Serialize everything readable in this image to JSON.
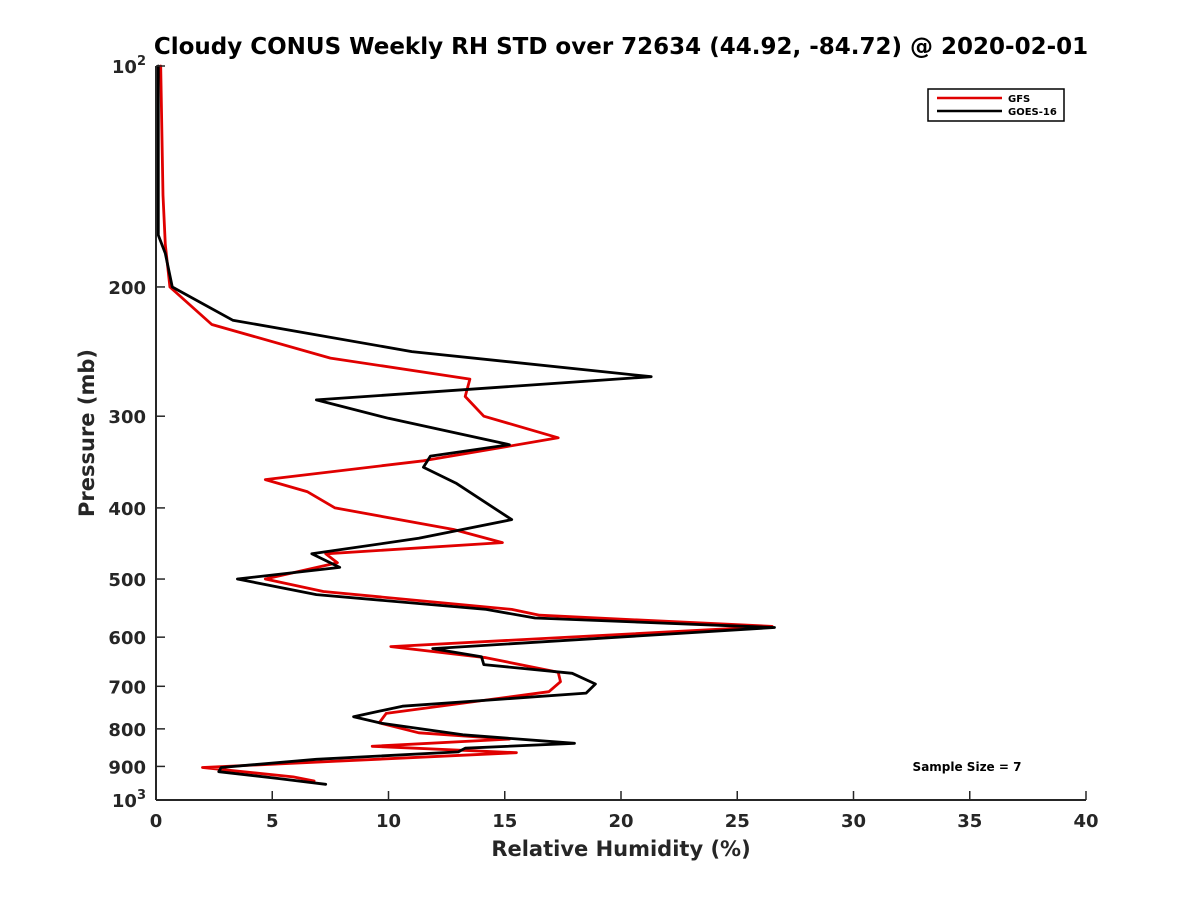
{
  "chart_data": {
    "type": "line",
    "title": "Cloudy CONUS Weekly RH STD over 72634 (44.92, -84.72) @ 2020-02-01",
    "xlabel": "Relative Humidity (%)",
    "ylabel": "Pressure (mb)",
    "xlim": [
      0,
      40
    ],
    "ylim": [
      100,
      1000
    ],
    "y_scale": "log",
    "y_reversed": true,
    "x_ticks": [
      "0",
      "5",
      "10",
      "15",
      "20",
      "25",
      "30",
      "35",
      "40"
    ],
    "y_ticks": [
      {
        "value": 100,
        "base": "10",
        "exp": "2"
      },
      {
        "value": 200,
        "label": "200"
      },
      {
        "value": 300,
        "label": "300"
      },
      {
        "value": 400,
        "label": "400"
      },
      {
        "value": 500,
        "label": "500"
      },
      {
        "value": 600,
        "label": "600"
      },
      {
        "value": 700,
        "label": "700"
      },
      {
        "value": 800,
        "label": "800"
      },
      {
        "value": 900,
        "label": "900"
      },
      {
        "value": 1000,
        "base": "10",
        "exp": "3"
      }
    ],
    "legend_position": "top-right",
    "annotation": "Sample Size = 7",
    "series": [
      {
        "name": "GFS",
        "color": "#e00000",
        "points": [
          [
            0.2,
            100
          ],
          [
            0.3,
            150
          ],
          [
            0.4,
            175
          ],
          [
            0.6,
            200
          ],
          [
            2.4,
            225
          ],
          [
            7.5,
            250
          ],
          [
            13.5,
            267
          ],
          [
            13.3,
            282
          ],
          [
            14.1,
            300
          ],
          [
            17.3,
            321
          ],
          [
            11.5,
            345
          ],
          [
            4.7,
            366
          ],
          [
            6.5,
            380
          ],
          [
            7.7,
            400
          ],
          [
            12.8,
            428
          ],
          [
            14.9,
            446
          ],
          [
            7.3,
            462
          ],
          [
            7.8,
            475
          ],
          [
            4.7,
            500
          ],
          [
            7.2,
            520
          ],
          [
            15.3,
            550
          ],
          [
            16.5,
            560
          ],
          [
            26.5,
            580
          ],
          [
            10.1,
            618
          ],
          [
            14.2,
            640
          ],
          [
            17.3,
            670
          ],
          [
            17.4,
            690
          ],
          [
            16.9,
            712
          ],
          [
            9.9,
            762
          ],
          [
            9.6,
            785
          ],
          [
            11.3,
            810
          ],
          [
            15.2,
            826
          ],
          [
            9.3,
            845
          ],
          [
            15.5,
            862
          ],
          [
            2.0,
            903
          ],
          [
            5.9,
            930
          ],
          [
            6.8,
            942
          ]
        ]
      },
      {
        "name": "GOES-16",
        "color": "#000000",
        "points": [
          [
            0.1,
            100
          ],
          [
            0.1,
            150
          ],
          [
            0.1,
            170
          ],
          [
            0.4,
            180
          ],
          [
            0.7,
            200
          ],
          [
            3.3,
            222
          ],
          [
            11.0,
            245
          ],
          [
            21.3,
            265
          ],
          [
            6.9,
            285
          ],
          [
            10.0,
            302
          ],
          [
            15.2,
            328
          ],
          [
            11.8,
            340
          ],
          [
            11.5,
            352
          ],
          [
            12.9,
            370
          ],
          [
            15.3,
            415
          ],
          [
            11.3,
            440
          ],
          [
            6.7,
            462
          ],
          [
            7.9,
            482
          ],
          [
            3.5,
            500
          ],
          [
            6.9,
            525
          ],
          [
            14.2,
            550
          ],
          [
            16.3,
            565
          ],
          [
            26.6,
            582
          ],
          [
            11.9,
            622
          ],
          [
            14.0,
            638
          ],
          [
            14.1,
            654
          ],
          [
            17.9,
            672
          ],
          [
            18.9,
            695
          ],
          [
            18.5,
            715
          ],
          [
            10.6,
            745
          ],
          [
            8.5,
            770
          ],
          [
            9.7,
            786
          ],
          [
            13.2,
            815
          ],
          [
            18.0,
            837
          ],
          [
            13.3,
            850
          ],
          [
            13.0,
            860
          ],
          [
            6.9,
            880
          ],
          [
            2.8,
            903
          ],
          [
            2.7,
            915
          ],
          [
            5.3,
            935
          ],
          [
            7.3,
            952
          ]
        ]
      }
    ]
  }
}
